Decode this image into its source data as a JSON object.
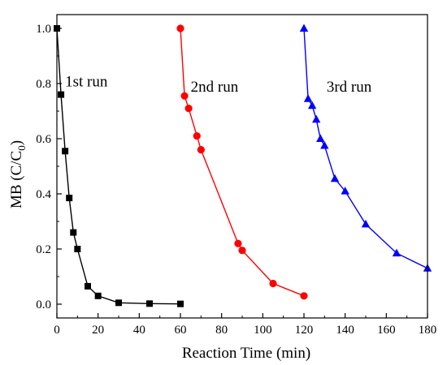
{
  "chart_data": {
    "type": "line",
    "title": "",
    "xlabel": "Reaction Time (min)",
    "ylabel": {
      "main": "MB (C/C",
      "sub": "0",
      "close": ")"
    },
    "xlim": [
      0,
      180
    ],
    "ylim": [
      -0.05,
      1.05
    ],
    "x_ticks": [
      0,
      20,
      40,
      60,
      80,
      100,
      120,
      140,
      160,
      180
    ],
    "y_ticks": [
      0.0,
      0.2,
      0.4,
      0.6,
      0.8,
      1.0
    ],
    "x_tick_labels": [
      "0",
      "20",
      "40",
      "60",
      "80",
      "100",
      "120",
      "140",
      "160",
      "180"
    ],
    "y_tick_labels": [
      "0.0",
      "0.2",
      "0.4",
      "0.6",
      "0.8",
      "1.0"
    ],
    "grid": false,
    "legend": "none",
    "series": [
      {
        "label": "1st run",
        "marker": "square",
        "color": "#000000",
        "x": [
          0,
          2,
          4,
          6,
          8,
          10,
          15,
          20,
          30,
          45,
          60
        ],
        "y": [
          1.0,
          0.76,
          0.555,
          0.385,
          0.26,
          0.2,
          0.065,
          0.03,
          0.005,
          0.002,
          0.001
        ]
      },
      {
        "label": "2nd run",
        "marker": "circle",
        "color": "#ff0000",
        "x": [
          60,
          62,
          64,
          68,
          70,
          88,
          90,
          105,
          120
        ],
        "y": [
          1.0,
          0.755,
          0.71,
          0.61,
          0.56,
          0.22,
          0.195,
          0.075,
          0.03
        ]
      },
      {
        "label": "3rd run",
        "marker": "triangle",
        "color": "#0000ff",
        "x": [
          120,
          122,
          124,
          126,
          128,
          130,
          135,
          140,
          150,
          165,
          180
        ],
        "y": [
          1.0,
          0.745,
          0.72,
          0.67,
          0.6,
          0.575,
          0.455,
          0.41,
          0.29,
          0.185,
          0.13
        ]
      }
    ],
    "annotations": [
      {
        "text": "1st run",
        "x": 4,
        "y": 0.79
      },
      {
        "text": "2nd run",
        "x": 65,
        "y": 0.77
      },
      {
        "text": "3rd run",
        "x": 131,
        "y": 0.77
      }
    ]
  }
}
